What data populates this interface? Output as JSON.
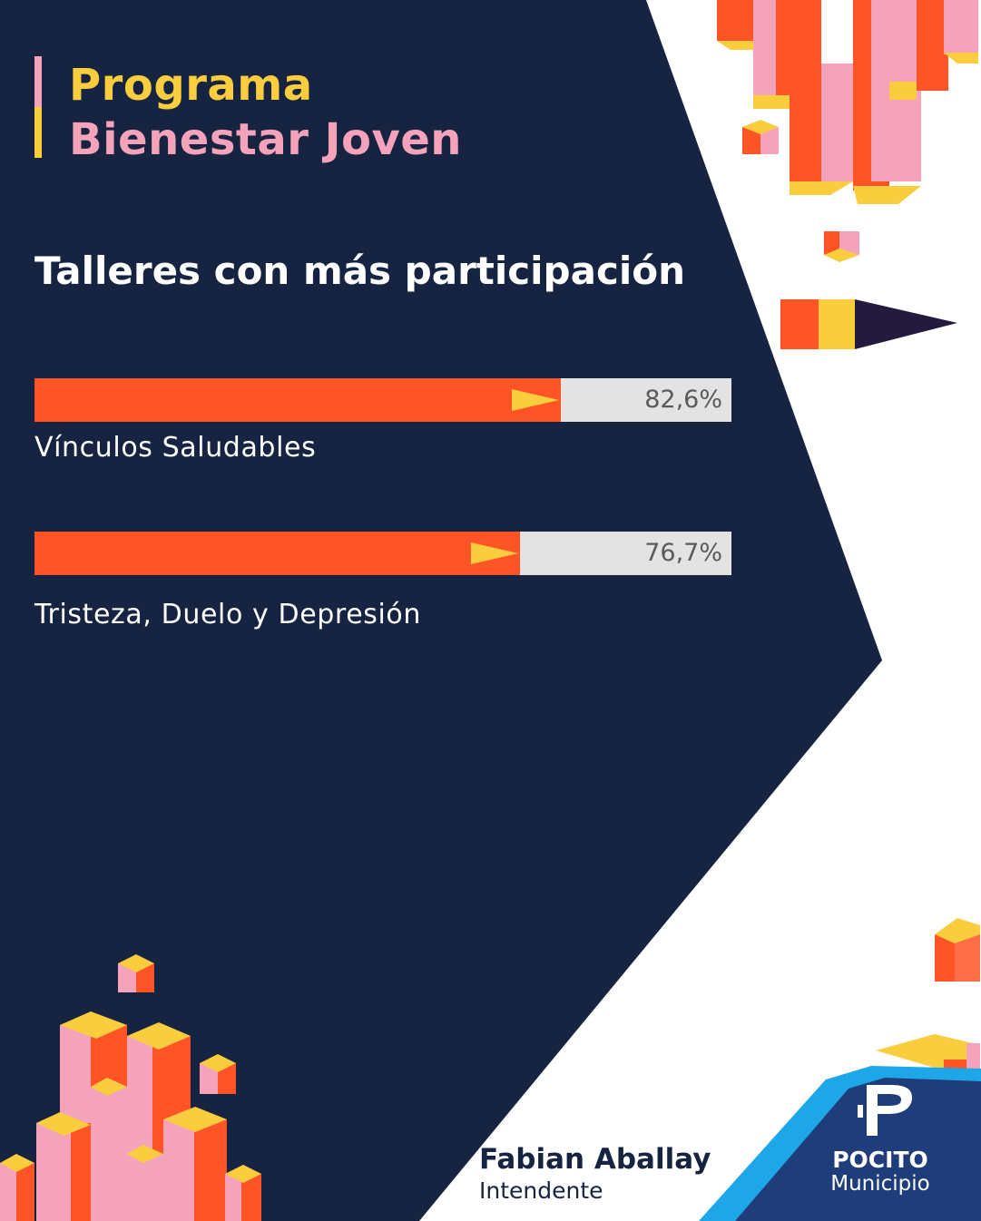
{
  "header": {
    "title_line1": "Programa",
    "title_line2": "Bienestar Joven"
  },
  "chart_data": {
    "type": "bar",
    "title": "Talleres con más participación",
    "categories": [
      "Vínculos Saludables",
      "Tristeza, Duelo y Depresión"
    ],
    "values": [
      82.6,
      76.7
    ],
    "value_labels": [
      "82,6%",
      "76,7%"
    ],
    "ylim": [
      0,
      100
    ],
    "orientation": "horizontal",
    "grid": false
  },
  "footer": {
    "name": "Fabian Aballay",
    "role": "Intendente",
    "logo_brand": "POCITO",
    "logo_sub": "Municipio"
  },
  "colors": {
    "navy": "#162441",
    "orange": "#fe5426",
    "yellow": "#f9cd3e",
    "pink": "#f5a3bb",
    "track": "#e3e3e3"
  }
}
